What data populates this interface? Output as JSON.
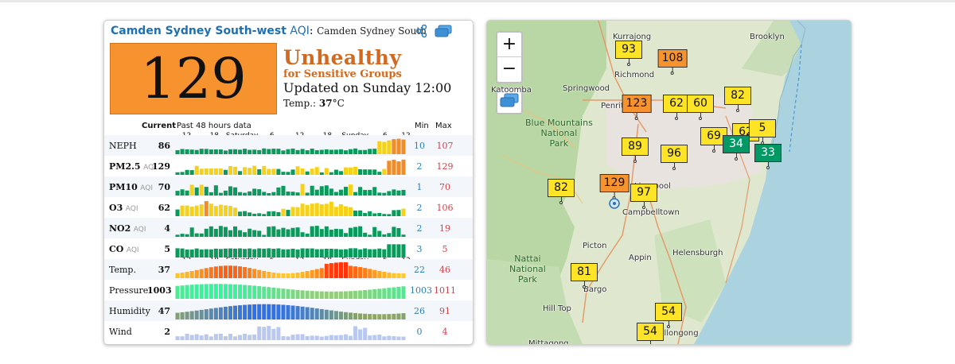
{
  "header": {
    "city": "Camden Sydney South-west",
    "aqi_word": "AQI",
    "station": "Camden Sydney South",
    "share_icon": "share-icon",
    "map_icon": "map-layers-icon"
  },
  "aqi": {
    "value": "129",
    "level": "Unhealthy",
    "level_sub": "for Sensitive Groups",
    "updated": "Updated on Sunday 12:00",
    "temp_label": "Temp.:",
    "temp_value": "37",
    "temp_unit": "°C",
    "color": "#f7932f"
  },
  "graph": {
    "current_label": "Current",
    "past_label": "Past 48 hours data",
    "min_label": "Min",
    "max_label": "Max",
    "time_ticks": [
      "12",
      "18",
      "Saturday",
      "6",
      "12",
      "18",
      "Sunday",
      "6",
      "12"
    ],
    "rows": [
      {
        "name": "NEPH",
        "sub": "",
        "current": "86",
        "min": "10",
        "max": "107",
        "kind": "aqi"
      },
      {
        "name": "PM2.5",
        "sub": "AQI",
        "current": "129",
        "min": "2",
        "max": "129",
        "kind": "aqi"
      },
      {
        "name": "PM10",
        "sub": "AQI",
        "current": "70",
        "min": "1",
        "max": "70",
        "kind": "aqi"
      },
      {
        "name": "O3",
        "sub": "AQI",
        "current": "62",
        "min": "2",
        "max": "106",
        "kind": "aqi"
      },
      {
        "name": "NO2",
        "sub": "AQI",
        "current": "4",
        "min": "2",
        "max": "19",
        "kind": "aqi"
      },
      {
        "name": "CO",
        "sub": "AQI",
        "current": "5",
        "min": "3",
        "max": "5",
        "kind": "aqi"
      },
      {
        "name": "Temp.",
        "sub": "",
        "current": "37",
        "min": "22",
        "max": "46",
        "kind": "temp"
      },
      {
        "name": "Pressure",
        "sub": "",
        "current": "1003",
        "min": "1003",
        "max": "1011",
        "kind": "pressure"
      },
      {
        "name": "Humidity",
        "sub": "",
        "current": "47",
        "min": "26",
        "max": "91",
        "kind": "humidity"
      },
      {
        "name": "Wind",
        "sub": "",
        "current": "2",
        "min": "0",
        "max": "4",
        "kind": "wind"
      }
    ]
  },
  "map": {
    "zoom_in": "+",
    "zoom_out": "−",
    "layers_icon": "layers-icon",
    "places": [
      {
        "name": "Kurrajong"
      },
      {
        "name": "Richmond"
      },
      {
        "name": "Brooklyn"
      },
      {
        "name": "Springwood"
      },
      {
        "name": "Penrith"
      },
      {
        "name": "Katoomba"
      },
      {
        "name": "Blue Mountains\nNational\nPark",
        "park": true
      },
      {
        "name": "Liverpool"
      },
      {
        "name": "Campbelltown"
      },
      {
        "name": "Picton"
      },
      {
        "name": "Appin"
      },
      {
        "name": "Helensburgh"
      },
      {
        "name": "Nattai\nNational\nPark",
        "park": true
      },
      {
        "name": "Bargo"
      },
      {
        "name": "Hill Top"
      },
      {
        "name": "Mittagong"
      },
      {
        "name": "Wollongong"
      }
    ],
    "stations": [
      {
        "value": "93",
        "color": "#fde427"
      },
      {
        "value": "108",
        "color": "#f7932f"
      },
      {
        "value": "82",
        "color": "#fde427"
      },
      {
        "value": "123",
        "color": "#f7932f"
      },
      {
        "value": "62",
        "color": "#fde427"
      },
      {
        "value": "60",
        "color": "#fde427"
      },
      {
        "value": "62",
        "color": "#fde427"
      },
      {
        "value": "5",
        "color": "#fde427"
      },
      {
        "value": "69",
        "color": "#fde427"
      },
      {
        "value": "34",
        "color": "#009966"
      },
      {
        "value": "33",
        "color": "#009966"
      },
      {
        "value": "89",
        "color": "#fde427"
      },
      {
        "value": "96",
        "color": "#fde427"
      },
      {
        "value": "82",
        "color": "#fde427"
      },
      {
        "value": "129",
        "color": "#f7932f"
      },
      {
        "value": "97",
        "color": "#fde427"
      },
      {
        "value": "81",
        "color": "#fde427"
      },
      {
        "value": "54",
        "color": "#fde427"
      },
      {
        "value": "54",
        "color": "#fde427"
      }
    ]
  }
}
